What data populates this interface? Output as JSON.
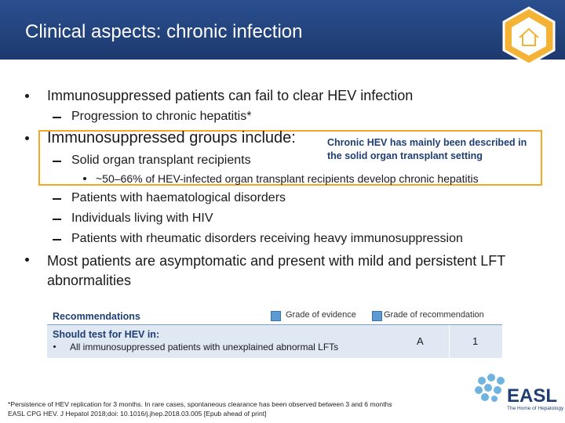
{
  "header": {
    "title": "Clinical aspects: chronic infection"
  },
  "bullets": [
    {
      "text": "Immunosuppressed patients can fail to clear HEV infection",
      "sub": [
        "Progression to chronic hepatitis*"
      ]
    },
    {
      "text": "Immunosuppressed groups include:",
      "sub": [
        "Solid organ transplant recipients",
        "Patients with haematological disorders",
        "Individuals living with HIV",
        "Patients with rheumatic disorders receiving heavy immunosuppression"
      ],
      "subsub": [
        "~50–66% of HEV-infected organ transplant recipients develop chronic hepatitis"
      ]
    },
    {
      "text": "Most patients are asymptomatic and present with mild and persistent LFT abnormalities"
    }
  ],
  "callout": {
    "text": "Chronic HEV has mainly been described in the solid organ transplant setting"
  },
  "table": {
    "header": "Recommendations",
    "legend": [
      "Grade of evidence",
      "Grade of recommendation"
    ],
    "row": {
      "title": "Should test for HEV in:",
      "item": "All immunosuppressed patients with unexplained abnormal LFTs",
      "evidence": "A",
      "recommendation": "1"
    }
  },
  "footnote": [
    "*Persistence of HEV replication for 3 months. In rare cases, spontaneous clearance has been observed between 3 and 6 months",
    "EASL CPG HEV. J Hepatol 2018;doi: 10.1016/j.jhep.2018.03.005 [Epub ahead of print]"
  ],
  "logo": {
    "name": "EASL",
    "tagline": "The Home of Hepatology"
  }
}
